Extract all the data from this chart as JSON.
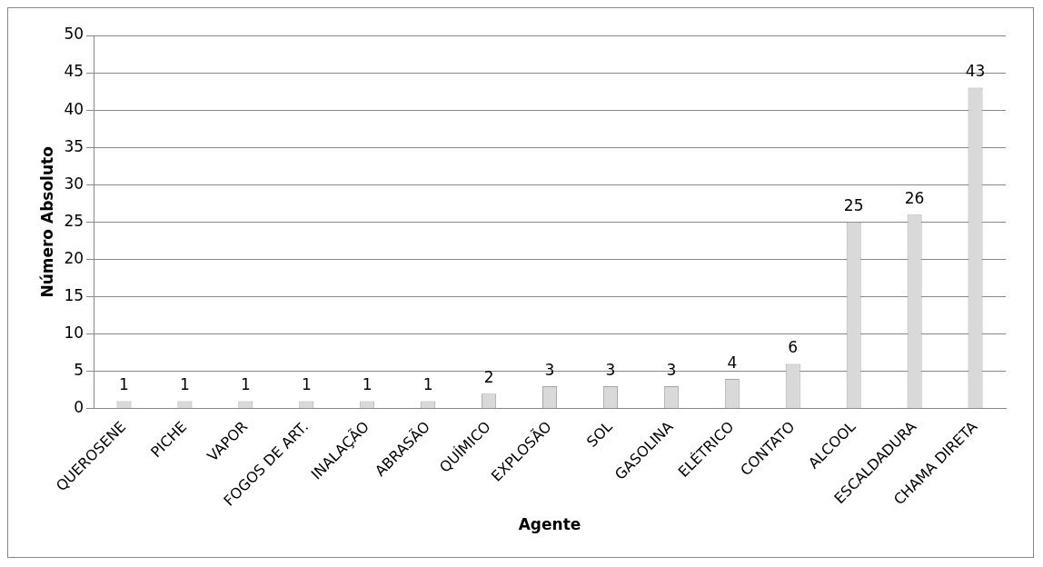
{
  "chart_data": {
    "type": "bar",
    "xlabel": "Agente",
    "ylabel": "Número Absoluto",
    "categories": [
      "QUEROSENE",
      "PICHE",
      "VAPOR",
      "FOGOS DE ART.",
      "INALAÇÃO",
      "ABRASÃO",
      "QUÍMICO",
      "EXPLOSÃO",
      "SOL",
      "GASOLINA",
      "ELÉTRICO",
      "CONTATO",
      "ALCOOL",
      "ESCALDADURA",
      "CHAMA DIRETA"
    ],
    "values": [
      1,
      1,
      1,
      1,
      1,
      1,
      2,
      3,
      3,
      3,
      4,
      6,
      25,
      26,
      43
    ],
    "color": "#d9d9d9",
    "ylim": [
      0,
      50
    ],
    "yticks": [
      0,
      5,
      10,
      15,
      20,
      25,
      30,
      35,
      40,
      45,
      50
    ],
    "grid": "y",
    "legend": false,
    "data_labels": true
  }
}
